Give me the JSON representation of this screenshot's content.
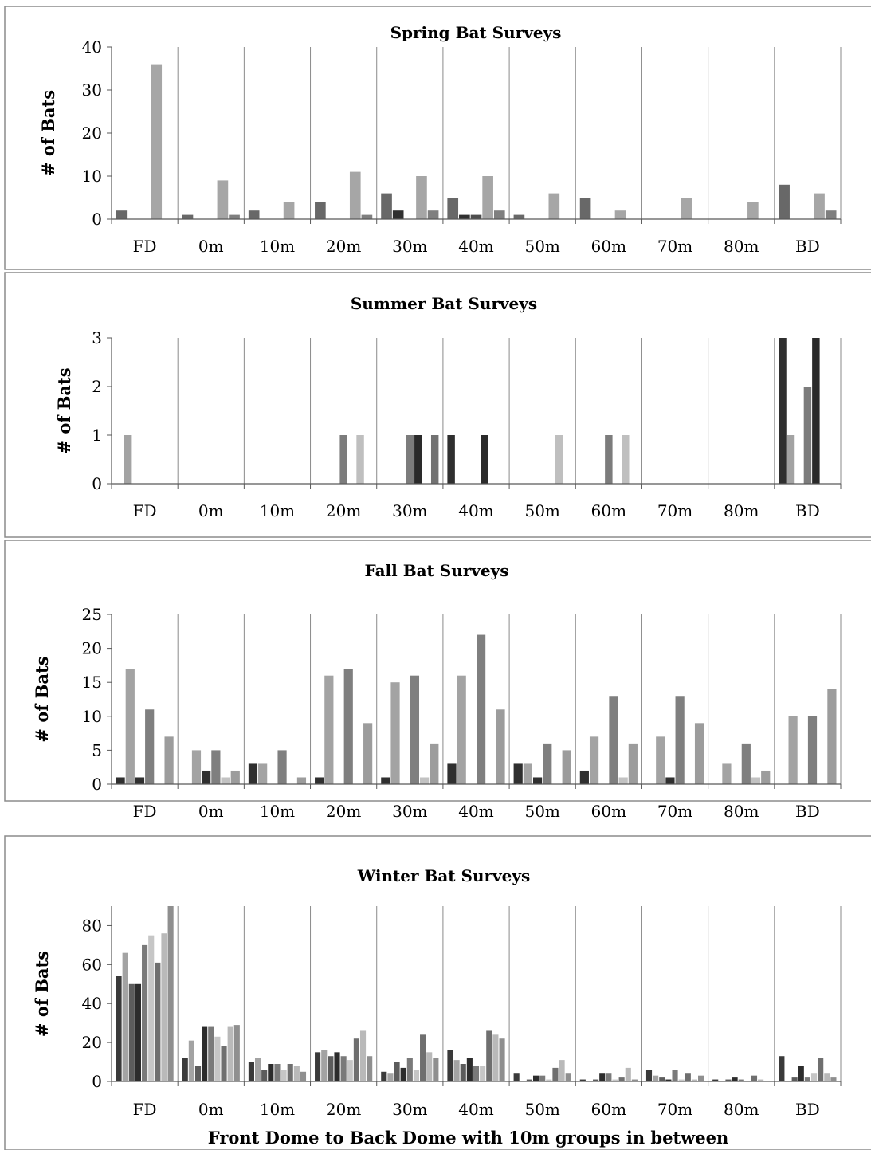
{
  "chart_data": [
    {
      "type": "bar",
      "title": "Spring Bat Surveys",
      "ylabel": "# of Bats",
      "xlabel": "",
      "ylim": [
        0,
        40
      ],
      "yticks": [
        0,
        10,
        20,
        30,
        40
      ],
      "categories": [
        "FD",
        "0m",
        "10m",
        "20m",
        "30m",
        "40m",
        "50m",
        "60m",
        "70m",
        "80m",
        "BD"
      ],
      "series_colors": [
        "#686868",
        "#303030",
        "#4d4d4d",
        "#a6a6a6",
        "#7f7f7f"
      ],
      "groups": [
        [
          2,
          0,
          0,
          36,
          0
        ],
        [
          1,
          0,
          0,
          9,
          1
        ],
        [
          2,
          0,
          0,
          4,
          0
        ],
        [
          4,
          0,
          0,
          11,
          1
        ],
        [
          6,
          2,
          0,
          10,
          2
        ],
        [
          5,
          1,
          1,
          10,
          2
        ],
        [
          1,
          0,
          0,
          6,
          0
        ],
        [
          5,
          0,
          0,
          2,
          0
        ],
        [
          0,
          0,
          0,
          5,
          0
        ],
        [
          0,
          0,
          0,
          4,
          0
        ],
        [
          8,
          0,
          0,
          6,
          2
        ]
      ]
    },
    {
      "type": "bar",
      "title": "Summer Bat Surveys",
      "ylabel": "# of Bats",
      "xlabel": "",
      "ylim": [
        0,
        3
      ],
      "yticks": [
        0,
        1,
        2,
        3
      ],
      "categories": [
        "FD",
        "0m",
        "10m",
        "20m",
        "30m",
        "40m",
        "50m",
        "60m",
        "70m",
        "80m",
        "BD"
      ],
      "series_colors": [
        "#2f2f2f",
        "#a3a3a3",
        "#5f5f5f",
        "#7c7c7c",
        "#2a2a2a",
        "#bfbfbf",
        "#727272"
      ],
      "groups": [
        [
          0,
          1,
          0,
          0,
          0,
          0,
          0
        ],
        [
          0,
          0,
          0,
          0,
          0,
          0,
          0
        ],
        [
          0,
          0,
          0,
          0,
          0,
          0,
          0
        ],
        [
          0,
          0,
          0,
          1,
          0,
          1,
          0
        ],
        [
          0,
          0,
          0,
          1,
          1,
          0,
          1
        ],
        [
          1,
          0,
          0,
          0,
          1,
          0,
          0
        ],
        [
          0,
          0,
          0,
          0,
          0,
          1,
          0
        ],
        [
          0,
          0,
          0,
          1,
          0,
          1,
          0
        ],
        [
          0,
          0,
          0,
          0,
          0,
          0,
          0
        ],
        [
          0,
          0,
          0,
          0,
          0,
          0,
          0
        ],
        [
          3,
          1,
          0,
          2,
          3,
          0,
          0
        ]
      ]
    },
    {
      "type": "bar",
      "title": "Fall Bat Surveys",
      "ylabel": "# of Bats",
      "xlabel": "",
      "ylim": [
        0,
        25
      ],
      "yticks": [
        0,
        5,
        10,
        15,
        20,
        25
      ],
      "categories": [
        "FD",
        "0m",
        "10m",
        "20m",
        "30m",
        "40m",
        "50m",
        "60m",
        "70m",
        "80m",
        "BD"
      ],
      "series_colors": [
        "#2f2f2f",
        "#a3a3a3",
        "#2f2f2f",
        "#7f7f7f",
        "#c2c2c2",
        "#9c9c9c"
      ],
      "groups": [
        [
          1,
          17,
          1,
          11,
          0,
          7
        ],
        [
          0,
          5,
          2,
          5,
          1,
          2
        ],
        [
          3,
          3,
          0,
          5,
          0,
          1
        ],
        [
          1,
          16,
          0,
          17,
          0,
          9
        ],
        [
          1,
          15,
          0,
          16,
          1,
          6
        ],
        [
          3,
          16,
          0,
          22,
          0,
          11
        ],
        [
          3,
          3,
          1,
          6,
          0,
          5
        ],
        [
          2,
          7,
          0,
          13,
          1,
          6
        ],
        [
          0,
          7,
          1,
          13,
          0,
          9
        ],
        [
          0,
          3,
          0,
          6,
          1,
          2
        ],
        [
          0,
          10,
          0,
          10,
          0,
          14
        ]
      ]
    },
    {
      "type": "bar",
      "title": "Winter Bat Surveys",
      "ylabel": "# of Bats",
      "xlabel": "Front Dome to Back Dome with 10m groups in between",
      "ylim": [
        0,
        90
      ],
      "yticks": [
        0,
        20,
        40,
        60,
        80
      ],
      "categories": [
        "FD",
        "0m",
        "10m",
        "20m",
        "30m",
        "40m",
        "50m",
        "60m",
        "70m",
        "80m",
        "BD"
      ],
      "series_colors": [
        "#3a3a3a",
        "#a3a3a3",
        "#5c5c5c",
        "#2c2c2c",
        "#7a7a7a",
        "#c6c6c6",
        "#6f6f6f",
        "#b9b9b9",
        "#8f8f8f"
      ],
      "groups": [
        [
          54,
          66,
          50,
          50,
          70,
          75,
          61,
          76,
          90
        ],
        [
          12,
          21,
          8,
          28,
          28,
          23,
          18,
          28,
          29
        ],
        [
          10,
          12,
          6,
          9,
          9,
          6,
          9,
          8,
          5
        ],
        [
          15,
          16,
          13,
          15,
          13,
          11,
          22,
          26,
          13
        ],
        [
          5,
          4,
          10,
          7,
          12,
          6,
          24,
          15,
          12
        ],
        [
          16,
          11,
          9,
          12,
          8,
          8,
          26,
          24,
          22
        ],
        [
          4,
          0,
          1,
          3,
          3,
          1,
          7,
          11,
          4
        ],
        [
          1,
          0,
          1,
          4,
          4,
          1,
          2,
          7,
          1
        ],
        [
          6,
          3,
          2,
          1,
          6,
          1,
          4,
          1,
          3
        ],
        [
          1,
          0,
          1,
          2,
          1,
          0,
          3,
          1,
          0
        ],
        [
          13,
          0,
          2,
          8,
          2,
          4,
          12,
          4,
          2
        ]
      ]
    }
  ]
}
